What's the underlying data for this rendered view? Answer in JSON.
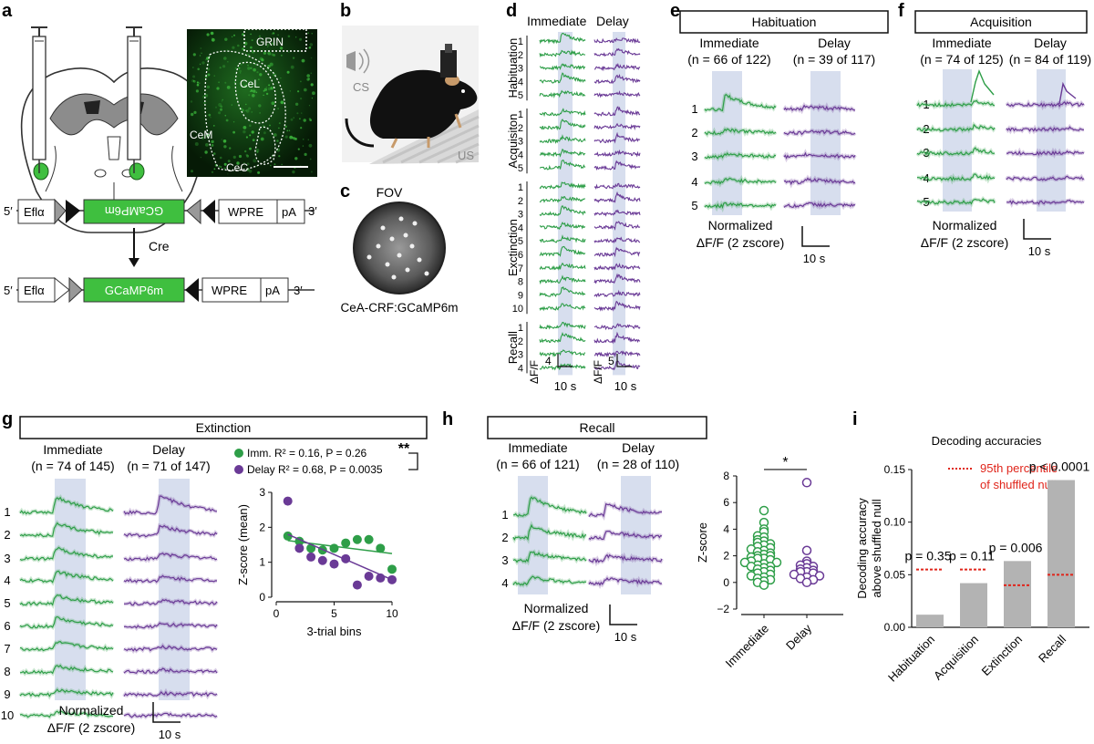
{
  "colors": {
    "green": "#2e9e48",
    "purple": "#6a3a96",
    "shade": "#c9d3e8",
    "gray": "#b3b3b3",
    "red": "#e0251b",
    "gfp": "#3fbf3f"
  },
  "panels": {
    "a": {
      "letter": "a",
      "histo_labels": [
        "GRIN",
        "CeL",
        "CeM",
        "CeC"
      ],
      "construct_top": {
        "p5": "5′",
        "efla": "Eflα",
        "gene": "GCaMP6m",
        "wpre": "WPRE",
        "pa": "pA",
        "p3": "3′"
      },
      "cre": "Cre",
      "construct_bottom": {
        "p5": "5′",
        "efla": "Eflα",
        "gene": "GCaMP6m",
        "wpre": "WPRE",
        "pa": "pA",
        "p3": "3′"
      }
    },
    "b": {
      "letter": "b",
      "cs": "CS",
      "us": "US"
    },
    "c": {
      "letter": "c",
      "fov": "FOV",
      "caption": "CeA-CRF:GCaMP6m"
    },
    "d": {
      "letter": "d",
      "col1": "Immediate",
      "col2": "Delay",
      "groups": [
        {
          "name": "Habituation",
          "rows": [
            "1",
            "2",
            "3",
            "4",
            "5"
          ]
        },
        {
          "name": "Acquisiton",
          "rows": [
            "1",
            "2",
            "3",
            "4",
            "5"
          ]
        },
        {
          "name": "Exctinction",
          "rows": [
            "1",
            "2",
            "3",
            "4",
            "5",
            "6",
            "7",
            "8",
            "9",
            "10"
          ]
        },
        {
          "name": "Recall",
          "rows": [
            "1",
            "2",
            "3",
            "4"
          ]
        }
      ],
      "scale1": {
        "y": "ΔF/F",
        "n": "4",
        "t": "10 s"
      },
      "scale2": {
        "y": "ΔF/F",
        "n": "5",
        "t": "10 s"
      }
    },
    "e": {
      "letter": "e",
      "title": "Habituation",
      "imm": "Immediate",
      "imm_n": "(n = 66 of 122)",
      "del": "Delay",
      "del_n": "(n = 39 of 117)",
      "rows": [
        "1",
        "2",
        "3",
        "4",
        "5"
      ],
      "norm1": "Normalized",
      "norm2": "ΔF/F (2 zscore)",
      "time": "10 s"
    },
    "f": {
      "letter": "f",
      "title": "Acquisition",
      "imm": "Immediate",
      "imm_n": "(n = 74 of 125)",
      "del": "Delay",
      "del_n": "(n = 84 of 119)",
      "rows": [
        "1",
        "2",
        "3",
        "4",
        "5"
      ],
      "norm1": "Normalized",
      "norm2": "ΔF/F (2 zscore)",
      "time": "10 s"
    },
    "g": {
      "letter": "g",
      "title": "Extinction",
      "imm": "Immediate",
      "imm_n": "(n = 74 of 145)",
      "del": "Delay",
      "del_n": "(n = 71 of 147)",
      "rows": [
        "1",
        "2",
        "3",
        "4",
        "5",
        "6",
        "7",
        "8",
        "9",
        "10"
      ],
      "norm1": "Normalized",
      "norm2": "ΔF/F (2 zscore)",
      "time": "10 s",
      "legend_imm": "Imm. R² = 0.16, P = 0.26",
      "legend_del": "Delay R² = 0.68, P = 0.0035",
      "sig": "**"
    },
    "h": {
      "letter": "h",
      "title": "Recall",
      "imm": "Immediate",
      "imm_n": "(n = 66 of 121)",
      "del": "Delay",
      "del_n": "(n = 28 of 110)",
      "rows": [
        "1",
        "2",
        "3",
        "4"
      ],
      "norm1": "Normalized",
      "norm2": "ΔF/F (2 zscore)",
      "time": "10 s",
      "sig": "*"
    },
    "i": {
      "letter": "i"
    }
  },
  "chart_data": [
    {
      "type": "scatter",
      "id": "g_scatter",
      "xlabel": "3-trial bins",
      "ylabel": "Z-score (mean)",
      "xlim": [
        0,
        10
      ],
      "ylim": [
        0,
        3
      ],
      "xticks": [
        0,
        5,
        10
      ],
      "yticks": [
        0,
        1,
        2,
        3
      ],
      "series": [
        {
          "name": "Imm.",
          "x": [
            1,
            2,
            3,
            4,
            5,
            6,
            7,
            8,
            9,
            10
          ],
          "y": [
            1.75,
            1.6,
            1.4,
            1.35,
            1.4,
            1.55,
            1.65,
            1.65,
            1.4,
            0.8
          ],
          "fit": [
            1.62,
            1.25
          ]
        },
        {
          "name": "Delay",
          "x": [
            1,
            2,
            3,
            4,
            5,
            6,
            7,
            8,
            9,
            10
          ],
          "y": [
            2.75,
            1.4,
            1.15,
            1.05,
            0.95,
            1.1,
            0.35,
            0.6,
            0.55,
            0.5
          ],
          "fit": [
            1.8,
            0.5
          ]
        }
      ]
    },
    {
      "type": "scatter",
      "id": "h_scatter",
      "xlabel": "",
      "ylabel": "Z-score",
      "ylim": [
        -2,
        8
      ],
      "yticks": [
        -2,
        0,
        2,
        4,
        6,
        8
      ],
      "categories": [
        "Immediate",
        "Delay"
      ],
      "series": [
        {
          "name": "Immediate",
          "values": [
            5.4,
            4.5,
            4.0,
            3.8,
            3.5,
            3.4,
            3.2,
            3.1,
            3.0,
            2.9,
            2.8,
            2.7,
            2.6,
            2.5,
            2.4,
            2.3,
            2.2,
            2.1,
            2.0,
            2.0,
            1.9,
            1.8,
            1.8,
            1.7,
            1.6,
            1.5,
            1.5,
            1.4,
            1.3,
            1.2,
            1.2,
            1.1,
            1.0,
            0.9,
            0.8,
            0.7,
            0.6,
            0.5,
            0.4,
            0.3,
            0.2,
            0.1,
            0.0,
            -0.2
          ]
        },
        {
          "name": "Delay",
          "values": [
            7.5,
            2.4,
            1.6,
            1.4,
            1.3,
            1.2,
            1.1,
            1.0,
            0.9,
            0.8,
            0.8,
            0.7,
            0.6,
            0.5,
            0.4,
            0.3,
            0.2,
            0.0
          ]
        }
      ],
      "sig": "*"
    },
    {
      "type": "bar",
      "id": "i_bar",
      "title": "Decoding accuracies",
      "legend": "95th percentile\nof shuffled null",
      "categories": [
        "Habituation",
        "Acquisition",
        "Extinction",
        "Recall"
      ],
      "values": [
        0.012,
        0.042,
        0.063,
        0.14
      ],
      "null95": [
        0.055,
        0.055,
        0.04,
        0.05
      ],
      "pvalues": [
        "p = 0.35",
        "p = 0.11",
        "p = 0.006",
        "p < 0.0001"
      ],
      "ylabel": "Decoding accuracy\nabove shuffled null",
      "ylim": [
        0,
        0.15
      ],
      "yticks": [
        "0.00",
        "0.05",
        "0.10",
        "0.15"
      ]
    }
  ]
}
